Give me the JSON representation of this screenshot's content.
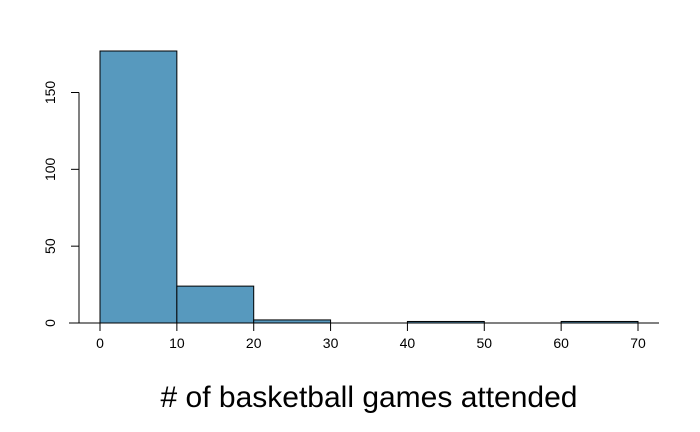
{
  "chart_data": {
    "type": "bar",
    "subtype": "histogram",
    "title": "",
    "xlabel": "# of basketball games attended",
    "ylabel": "",
    "bins": [
      {
        "start": 0,
        "end": 10,
        "count": 177
      },
      {
        "start": 10,
        "end": 20,
        "count": 24
      },
      {
        "start": 20,
        "end": 30,
        "count": 2
      },
      {
        "start": 30,
        "end": 40,
        "count": 0
      },
      {
        "start": 40,
        "end": 50,
        "count": 1
      },
      {
        "start": 50,
        "end": 60,
        "count": 0
      },
      {
        "start": 60,
        "end": 70,
        "count": 1
      }
    ],
    "x_ticks": [
      0,
      10,
      20,
      30,
      40,
      50,
      60,
      70
    ],
    "y_ticks": [
      0,
      50,
      100,
      150
    ],
    "xlim": [
      0,
      70
    ],
    "ylim": [
      0,
      177
    ],
    "grid": false,
    "legend": "none",
    "colors": {
      "bar_fill": "#5799be",
      "bar_stroke": "#000000",
      "axis": "#000000"
    }
  }
}
